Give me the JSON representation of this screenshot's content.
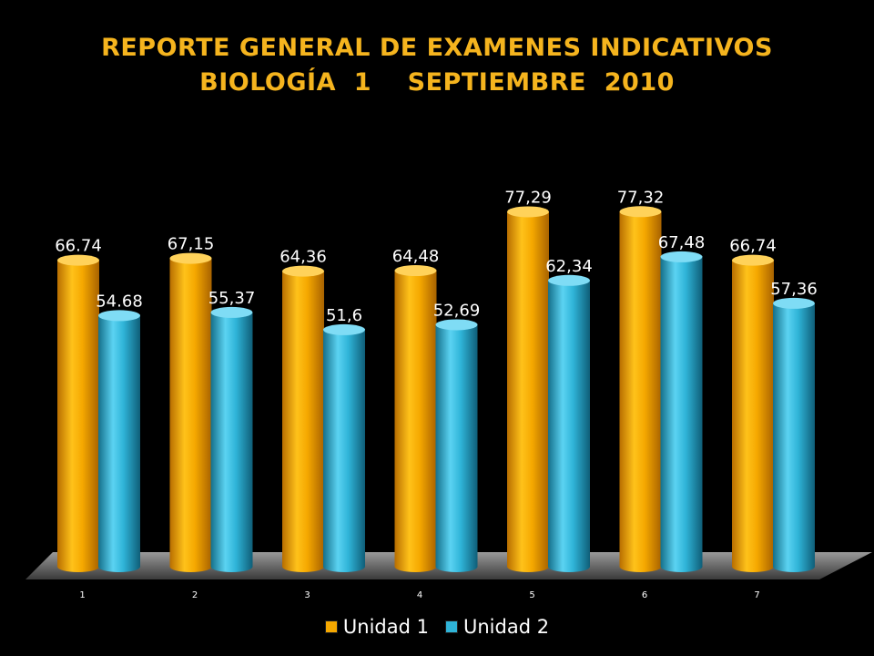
{
  "title": {
    "line1": "REPORTE GENERAL DE EXAMENES INDICATIVOS",
    "line2": "BIOLOGÍA  1    SEPTIEMBRE  2010"
  },
  "colors": {
    "series1": "#f5a800",
    "series2": "#2fb4d8",
    "label": "#ffffff",
    "tick": "#ffffff"
  },
  "chart_data": {
    "type": "bar",
    "title": "REPORTE GENERAL DE EXAMENES INDICATIVOS BIOLOGÍA 1 SEPTIEMBRE 2010",
    "categories": [
      "1",
      "2",
      "3",
      "4",
      "5",
      "6",
      "7"
    ],
    "series": [
      {
        "name": "Unidad 1",
        "values": [
          66.74,
          67.15,
          64.36,
          64.48,
          77.29,
          77.32,
          66.74
        ],
        "labels": [
          "66.74",
          "67,15",
          "64,36",
          "64,48",
          "77,29",
          "77,32",
          "66,74"
        ]
      },
      {
        "name": "Unidad 2",
        "values": [
          54.68,
          55.37,
          51.6,
          52.69,
          62.34,
          67.48,
          57.36
        ],
        "labels": [
          "54.68",
          "55,37",
          "51,6",
          "52,69",
          "62,34",
          "67,48",
          "57,36"
        ]
      }
    ],
    "xlabel": "",
    "ylabel": "",
    "ylim": [
      0,
      80
    ],
    "grid": false,
    "legend": "bottom",
    "style": "3d-cylinder"
  }
}
